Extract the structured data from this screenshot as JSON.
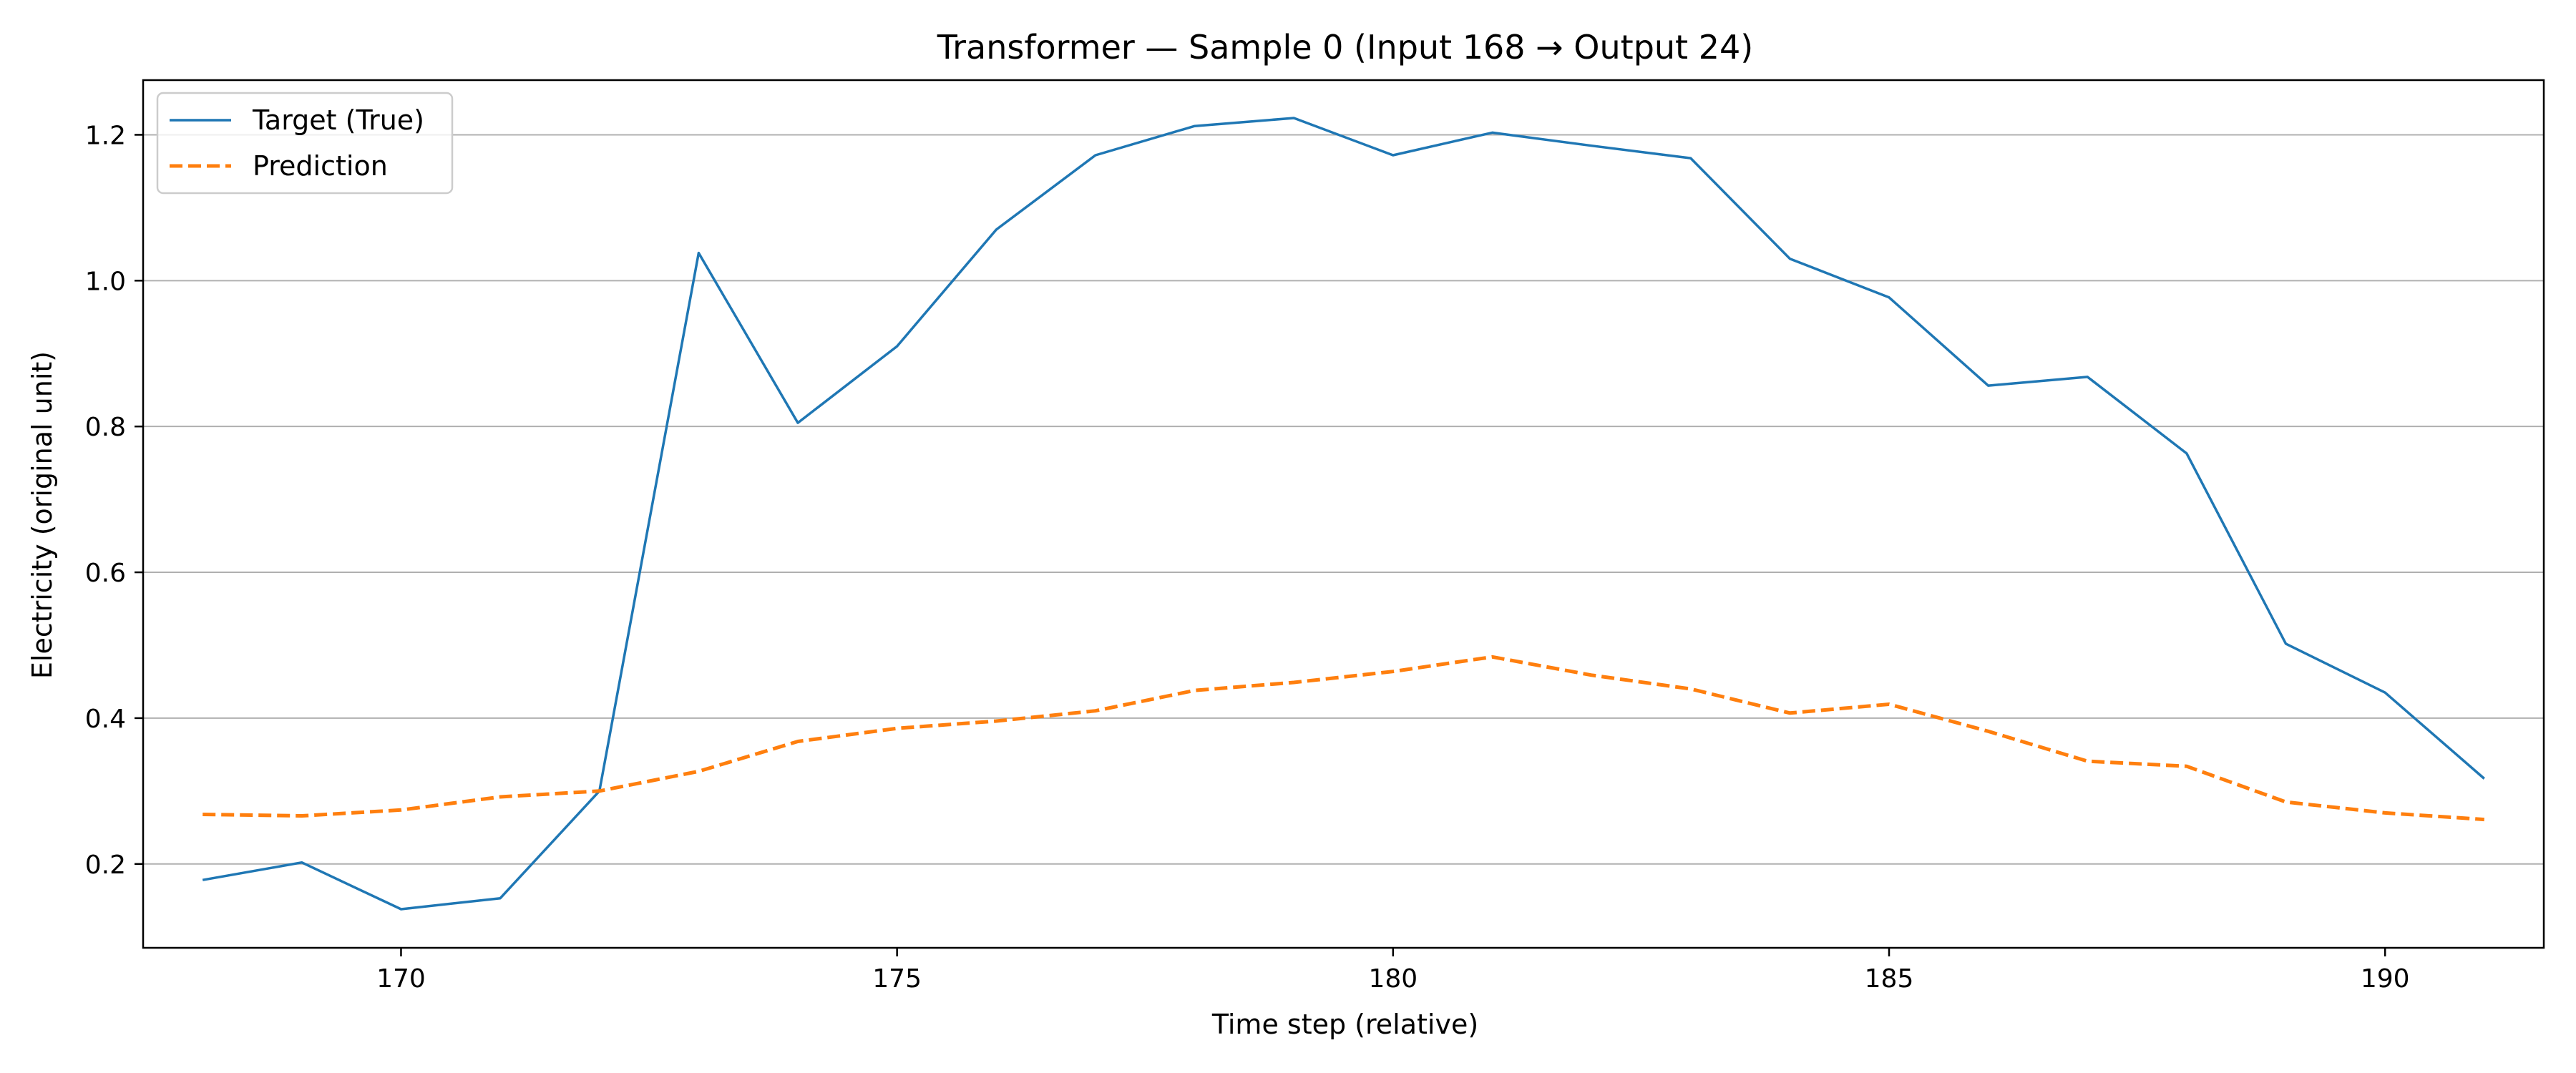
{
  "chart_data": {
    "type": "line",
    "title": "Transformer — Sample 0 (Input 168 → Output 24)",
    "xlabel": "Time step (relative)",
    "ylabel": "Electricity (original unit)",
    "xlim": [
      167.4,
      191.6
    ],
    "ylim": [
      0.085,
      1.275
    ],
    "xticks": [
      170,
      175,
      180,
      185,
      190
    ],
    "yticks": [
      0.2,
      0.4,
      0.6,
      0.8,
      1.0,
      1.2
    ],
    "grid": "y-axis",
    "legend_position": "upper-left",
    "x": [
      168,
      169,
      170,
      171,
      172,
      173,
      174,
      175,
      176,
      177,
      178,
      179,
      180,
      181,
      182,
      183,
      184,
      185,
      186,
      187,
      188,
      189,
      190,
      191
    ],
    "series": [
      {
        "name": "Target (True)",
        "color": "#1f77b4",
        "style": "solid",
        "values": [
          0.178,
          0.202,
          0.138,
          0.153,
          0.3,
          1.038,
          0.805,
          0.91,
          1.07,
          1.172,
          1.212,
          1.223,
          1.172,
          1.203,
          1.185,
          1.168,
          1.03,
          0.977,
          0.856,
          0.868,
          0.763,
          0.502,
          0.435,
          0.317
        ]
      },
      {
        "name": "Prediction",
        "color": "#ff7f0e",
        "style": "dashed",
        "values": [
          0.268,
          0.266,
          0.274,
          0.292,
          0.3,
          0.327,
          0.368,
          0.386,
          0.396,
          0.41,
          0.438,
          0.449,
          0.464,
          0.484,
          0.459,
          0.44,
          0.407,
          0.419,
          0.382,
          0.341,
          0.334,
          0.285,
          0.27,
          0.261
        ]
      }
    ]
  }
}
